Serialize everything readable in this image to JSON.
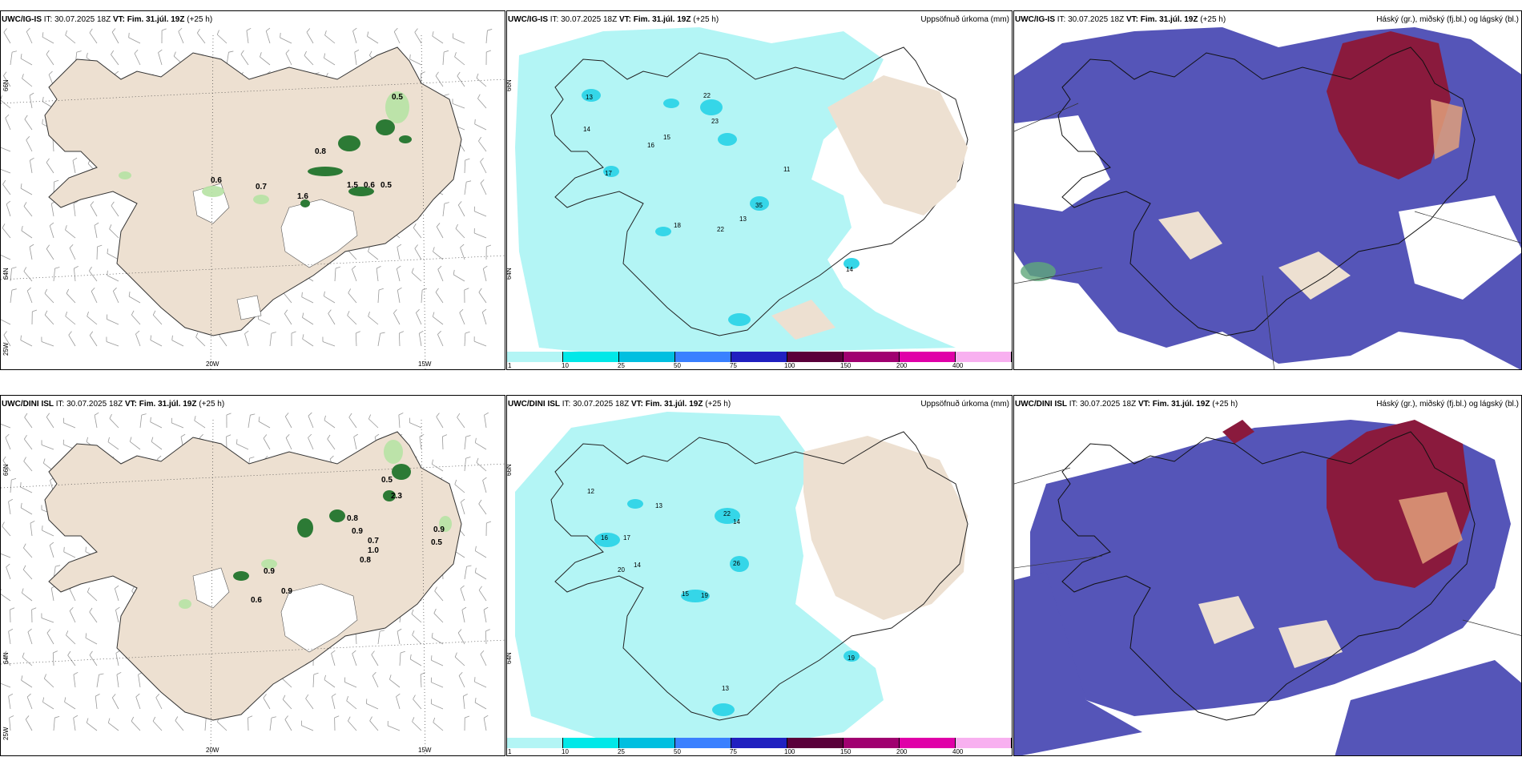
{
  "colors": {
    "land": "#ede0d1",
    "precip_light": "#b3f5f5",
    "precip_mid": "#35d6e8",
    "cloud_high": "#8a1a3d",
    "cloud_mid": "#e0a07a",
    "cloud_low": "#5555b8",
    "wind": "#999999",
    "green": "#2c7a35"
  },
  "panels": [
    {
      "model": "UWC/IG-IS",
      "it_label": "IT:",
      "it": "30.07.2025 18Z",
      "vt_label": "VT:",
      "vt": "Fim. 31.júl. 19Z",
      "lead": "(+25 h)",
      "right_title": ""
    },
    {
      "model": "UWC/IG-IS",
      "it_label": "IT:",
      "it": "30.07.2025 18Z",
      "vt_label": "VT:",
      "vt": "Fim. 31.júl. 19Z",
      "lead": "(+25 h)",
      "right_title": "Uppsöfnuð úrkoma (mm)"
    },
    {
      "model": "UWC/IG-IS",
      "it_label": "IT:",
      "it": "30.07.2025 18Z",
      "vt_label": "VT:",
      "vt": "Fim. 31.júl. 19Z",
      "lead": "(+25 h)",
      "right_title": "Háský (gr.), miðský (fj.bl.) og lágský (bl.)"
    },
    {
      "model": "UWC/DINI ISL",
      "it_label": "IT:",
      "it": "30.07.2025 18Z",
      "vt_label": "VT:",
      "vt": "Fim. 31.júl. 19Z",
      "lead": "(+25 h)",
      "right_title": ""
    },
    {
      "model": "UWC/DINI ISL",
      "it_label": "IT:",
      "it": "30.07.2025 18Z",
      "vt_label": "VT:",
      "vt": "Fim. 31.júl. 19Z",
      "lead": "(+25 h)",
      "right_title": "Uppsöfnuð úrkoma (mm)"
    },
    {
      "model": "UWC/DINI ISL",
      "it_label": "IT:",
      "it": "30.07.2025 18Z",
      "vt_label": "VT:",
      "vt": "Fim. 31.júl. 19Z",
      "lead": "(+25 h)",
      "right_title": "Háský (gr.), miðský (fj.bl.) og lágský (bl.)"
    }
  ],
  "axes": {
    "lat_66": "66N",
    "lat_64": "64N",
    "lon_25": "25W",
    "lon_20": "20W",
    "lon_15": "15W"
  },
  "colorbar": {
    "ticks": [
      "1",
      "10",
      "25",
      "50",
      "75",
      "100",
      "150",
      "200",
      "400"
    ],
    "colors": [
      "#b3f5f5",
      "#00e8e8",
      "#00bfe0",
      "#3a80ff",
      "#2020c0",
      "#5a003a",
      "#a00070",
      "#e000a8",
      "#f8b0f0"
    ]
  },
  "top_precip_labels": [
    "0.5",
    "0.8",
    "0.7",
    "0.6",
    "1.6",
    "1.5",
    "0.6",
    "0.5"
  ],
  "bottom_precip_labels": [
    "0.5",
    "2.3",
    "0.8",
    "0.9",
    "0.7",
    "1.0",
    "0.8",
    "0.9",
    "0.5",
    "0.9",
    "0.6",
    "0.9"
  ],
  "top_accum_labels": [
    "13",
    "14",
    "16",
    "17",
    "22",
    "23",
    "15",
    "35",
    "18",
    "22",
    "13",
    "14",
    "11"
  ],
  "bottom_accum_labels": [
    "12",
    "16",
    "17",
    "20",
    "14",
    "13",
    "22",
    "15",
    "26",
    "19",
    "13",
    "19",
    "14"
  ]
}
